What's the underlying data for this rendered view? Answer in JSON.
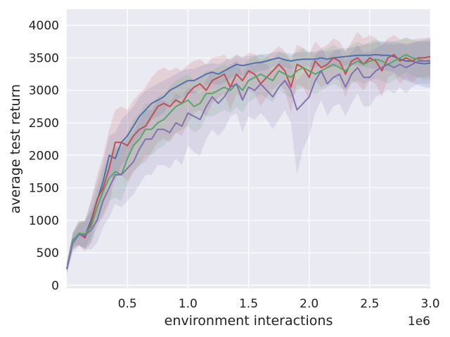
{
  "chart_data": {
    "type": "line",
    "title": "",
    "xlabel": "environment interactions",
    "ylabel": "average test return",
    "x_offset_label": "1e6",
    "xlim": [
      0.0,
      3.0
    ],
    "ylim": [
      -50,
      4250
    ],
    "x_ticks": [
      0.5,
      1.0,
      1.5,
      2.0,
      2.5,
      3.0
    ],
    "x_tick_labels": [
      "0.5",
      "1.0",
      "1.5",
      "2.0",
      "2.5",
      "3.0"
    ],
    "y_ticks": [
      0,
      500,
      1000,
      1500,
      2000,
      2500,
      3000,
      3500,
      4000
    ],
    "y_tick_labels": [
      "0",
      "500",
      "1000",
      "1500",
      "2000",
      "2500",
      "3000",
      "3500",
      "4000"
    ],
    "grid": true,
    "background": "#EAEAF2",
    "x": [
      0.0,
      0.05,
      0.1,
      0.15,
      0.2,
      0.25,
      0.3,
      0.35,
      0.4,
      0.45,
      0.5,
      0.55,
      0.6,
      0.65,
      0.7,
      0.75,
      0.8,
      0.85,
      0.9,
      0.95,
      1.0,
      1.05,
      1.1,
      1.15,
      1.2,
      1.25,
      1.3,
      1.35,
      1.4,
      1.45,
      1.5,
      1.55,
      1.6,
      1.65,
      1.7,
      1.75,
      1.8,
      1.85,
      1.9,
      1.95,
      2.0,
      2.05,
      2.1,
      2.15,
      2.2,
      2.25,
      2.3,
      2.35,
      2.4,
      2.45,
      2.5,
      2.55,
      2.6,
      2.65,
      2.7,
      2.75,
      2.8,
      2.85,
      2.9,
      2.95,
      3.0
    ],
    "series": [
      {
        "color": "#4C72B0",
        "values": [
          250,
          700,
          780,
          760,
          1000,
          1300,
          1600,
          2000,
          1950,
          2200,
          2300,
          2450,
          2600,
          2700,
          2800,
          2850,
          2900,
          3000,
          3050,
          3100,
          3150,
          3150,
          3200,
          3250,
          3280,
          3250,
          3300,
          3350,
          3400,
          3380,
          3400,
          3420,
          3430,
          3450,
          3480,
          3500,
          3470,
          3450,
          3470,
          3480,
          3480,
          3480,
          3500,
          3480,
          3500,
          3510,
          3520,
          3530,
          3540,
          3540,
          3540,
          3550,
          3540,
          3540,
          3520,
          3480,
          3450,
          3450,
          3420,
          3410,
          3420
        ],
        "band_upper": [
          350,
          800,
          950,
          1000,
          1300,
          1600,
          1900,
          2300,
          2350,
          2550,
          2650,
          2750,
          2900,
          3000,
          3050,
          3100,
          3150,
          3200,
          3250,
          3300,
          3330,
          3330,
          3370,
          3400,
          3420,
          3400,
          3450,
          3500,
          3530,
          3510,
          3530,
          3540,
          3550,
          3560,
          3580,
          3600,
          3580,
          3560,
          3580,
          3590,
          3590,
          3600,
          3620,
          3600,
          3620,
          3640,
          3650,
          3660,
          3680,
          3700,
          3720,
          3740,
          3750,
          3760,
          3750,
          3740,
          3720,
          3740,
          3760,
          3780,
          3800
        ],
        "band_lower": [
          180,
          600,
          620,
          560,
          750,
          1000,
          1300,
          1700,
          1600,
          1850,
          1950,
          2150,
          2300,
          2400,
          2550,
          2600,
          2650,
          2800,
          2850,
          2900,
          2950,
          2950,
          3000,
          3080,
          3100,
          3080,
          3120,
          3180,
          3250,
          3230,
          3250,
          3280,
          3300,
          3320,
          3360,
          3380,
          3350,
          3330,
          3350,
          3370,
          3360,
          3350,
          3370,
          3340,
          3360,
          3370,
          3380,
          3390,
          3380,
          3360,
          3340,
          3330,
          3320,
          3300,
          3280,
          3200,
          3150,
          3120,
          3080,
          3050,
          3040
        ]
      },
      {
        "color": "#C44E52",
        "values": [
          250,
          680,
          800,
          730,
          950,
          1320,
          1500,
          1800,
          2200,
          2200,
          2150,
          2300,
          2400,
          2450,
          2600,
          2750,
          2800,
          2750,
          2850,
          2800,
          2950,
          3050,
          3100,
          3000,
          3150,
          3200,
          3250,
          3050,
          3250,
          3150,
          3300,
          3250,
          3100,
          3200,
          3300,
          3400,
          3300,
          3050,
          3400,
          3350,
          3200,
          3450,
          3350,
          3400,
          3500,
          3450,
          3250,
          3450,
          3500,
          3400,
          3500,
          3450,
          3300,
          3500,
          3550,
          3450,
          3500,
          3450,
          3500,
          3500,
          3520
        ],
        "band_upper": [
          350,
          820,
          1000,
          980,
          1300,
          1700,
          2000,
          2400,
          2700,
          2750,
          2700,
          2850,
          2950,
          3050,
          3200,
          3300,
          3350,
          3300,
          3350,
          3300,
          3400,
          3450,
          3480,
          3400,
          3500,
          3520,
          3550,
          3450,
          3560,
          3500,
          3580,
          3560,
          3450,
          3520,
          3600,
          3680,
          3600,
          3450,
          3700,
          3650,
          3550,
          3750,
          3650,
          3700,
          3800,
          3750,
          3600,
          3750,
          3900,
          3800,
          3850,
          3800,
          3700,
          3800,
          3850,
          3780,
          3800,
          3780,
          3800,
          3800,
          3820
        ],
        "band_lower": [
          180,
          550,
          620,
          520,
          650,
          950,
          1050,
          1250,
          1700,
          1700,
          1600,
          1750,
          1850,
          1900,
          2050,
          2200,
          2250,
          2200,
          2350,
          2300,
          2500,
          2650,
          2700,
          2600,
          2800,
          2880,
          2950,
          2700,
          2950,
          2850,
          3000,
          2950,
          2750,
          2900,
          3000,
          3100,
          3000,
          2650,
          3100,
          3050,
          2850,
          3150,
          3050,
          3100,
          3200,
          3150,
          2900,
          3150,
          3100,
          3000,
          3150,
          3100,
          2900,
          3200,
          3250,
          3100,
          3200,
          3120,
          3200,
          3200,
          3220
        ]
      },
      {
        "color": "#55A868",
        "values": [
          250,
          690,
          800,
          790,
          900,
          1200,
          1450,
          1650,
          1750,
          1700,
          1950,
          2150,
          2250,
          2400,
          2400,
          2500,
          2550,
          2650,
          2750,
          2800,
          2850,
          2750,
          2800,
          2950,
          2950,
          3000,
          3050,
          3000,
          3100,
          3000,
          3150,
          3200,
          3250,
          3200,
          3150,
          3300,
          3250,
          3200,
          3300,
          3350,
          3300,
          3250,
          3300,
          3350,
          3400,
          3350,
          3300,
          3400,
          3450,
          3400,
          3450,
          3480,
          3450,
          3400,
          3450,
          3500,
          3550,
          3500,
          3480,
          3450,
          3460
        ],
        "band_upper": [
          350,
          820,
          980,
          1000,
          1150,
          1500,
          1800,
          2000,
          2150,
          2100,
          2350,
          2550,
          2650,
          2800,
          2800,
          2900,
          2950,
          3050,
          3150,
          3200,
          3250,
          3150,
          3200,
          3300,
          3300,
          3350,
          3400,
          3350,
          3450,
          3350,
          3480,
          3520,
          3560,
          3520,
          3480,
          3600,
          3560,
          3520,
          3600,
          3650,
          3600,
          3560,
          3600,
          3650,
          3700,
          3650,
          3600,
          3700,
          3750,
          3700,
          3750,
          3780,
          3750,
          3700,
          3750,
          3780,
          3820,
          3780,
          3760,
          3740,
          3750
        ],
        "band_lower": [
          180,
          560,
          620,
          580,
          650,
          900,
          1100,
          1300,
          1350,
          1300,
          1550,
          1750,
          1850,
          2000,
          2000,
          2100,
          2150,
          2250,
          2350,
          2400,
          2450,
          2350,
          2400,
          2600,
          2600,
          2650,
          2700,
          2650,
          2750,
          2650,
          2820,
          2880,
          2940,
          2880,
          2820,
          3000,
          2940,
          2880,
          3000,
          3050,
          3000,
          2940,
          3000,
          3050,
          3100,
          3050,
          3000,
          3100,
          3150,
          3100,
          3150,
          3180,
          3150,
          3100,
          3150,
          3220,
          3280,
          3220,
          3200,
          3160,
          3170
        ]
      },
      {
        "color": "#8172B2",
        "values": [
          250,
          650,
          780,
          770,
          850,
          1000,
          1300,
          1500,
          1700,
          1700,
          1800,
          1900,
          2100,
          2250,
          2250,
          2400,
          2400,
          2350,
          2500,
          2450,
          2650,
          2600,
          2550,
          2750,
          2900,
          2800,
          2900,
          3050,
          3100,
          2850,
          3050,
          3000,
          3100,
          3000,
          2900,
          3050,
          3150,
          3000,
          2700,
          2800,
          2900,
          3150,
          3300,
          3100,
          3200,
          3250,
          3050,
          3250,
          3350,
          3200,
          3200,
          3300,
          3350,
          3400,
          3350,
          3400,
          3350,
          3400,
          3450,
          3450,
          3450
        ],
        "band_upper": [
          330,
          780,
          950,
          980,
          1150,
          1350,
          1650,
          1900,
          2100,
          2150,
          2250,
          2350,
          2550,
          2700,
          2700,
          2850,
          2850,
          2800,
          2950,
          2900,
          3050,
          3000,
          2950,
          3150,
          3300,
          3200,
          3300,
          3400,
          3450,
          3250,
          3400,
          3380,
          3450,
          3400,
          3300,
          3450,
          3500,
          3400,
          3150,
          3250,
          3350,
          3550,
          3650,
          3500,
          3600,
          3620,
          3450,
          3600,
          3700,
          3580,
          3600,
          3650,
          3700,
          3750,
          3700,
          3720,
          3700,
          3720,
          3750,
          3760,
          3760
        ],
        "band_lower": [
          180,
          500,
          600,
          560,
          550,
          650,
          900,
          1050,
          1250,
          1200,
          1300,
          1400,
          1550,
          1700,
          1700,
          1850,
          1850,
          1800,
          1950,
          1850,
          2150,
          2050,
          2000,
          2250,
          2400,
          2300,
          2400,
          2600,
          2650,
          2350,
          2600,
          2550,
          2650,
          2550,
          2400,
          2550,
          2700,
          2500,
          1700,
          2100,
          2300,
          2650,
          2850,
          2600,
          2750,
          2800,
          2600,
          2800,
          2950,
          2750,
          2750,
          2900,
          2950,
          3000,
          2950,
          3050,
          2950,
          3050,
          3100,
          3100,
          3100
        ]
      }
    ]
  }
}
